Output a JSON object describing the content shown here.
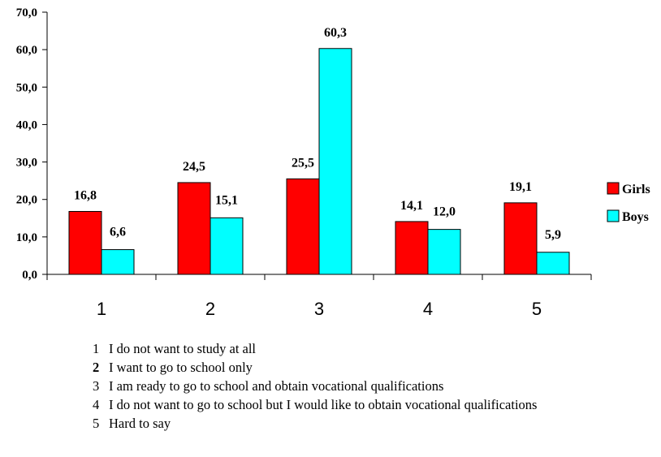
{
  "chart_data": {
    "type": "bar",
    "categories": [
      "1",
      "2",
      "3",
      "4",
      "5"
    ],
    "series": [
      {
        "name": "Girls",
        "values": [
          16.8,
          24.5,
          25.5,
          14.1,
          19.1
        ],
        "labels": [
          "16,8",
          "24,5",
          "25,5",
          "14,1",
          "19,1"
        ],
        "color": "#ff0000"
      },
      {
        "name": "Boys",
        "values": [
          6.6,
          15.1,
          60.3,
          12.0,
          5.9
        ],
        "labels": [
          "6,6",
          "15,1",
          "60,3",
          "12,0",
          "5,9"
        ],
        "color": "#00ffff"
      }
    ],
    "ylim": [
      0,
      70
    ],
    "yticks": [
      "0,0",
      "10,0",
      "20,0",
      "30,0",
      "40,0",
      "50,0",
      "60,0",
      "70,0"
    ],
    "grid": false,
    "legend": "right"
  },
  "notes": [
    {
      "num": "1",
      "text": "I do not want to study at all"
    },
    {
      "num": "2",
      "text": "I want to go to school only"
    },
    {
      "num": "3",
      "text": "I am ready to go to school and obtain vocational qualifications"
    },
    {
      "num": "4",
      "text": "I do not want to go to school but I would like to obtain vocational qualifications"
    },
    {
      "num": "5",
      "text": "Hard to say"
    }
  ]
}
